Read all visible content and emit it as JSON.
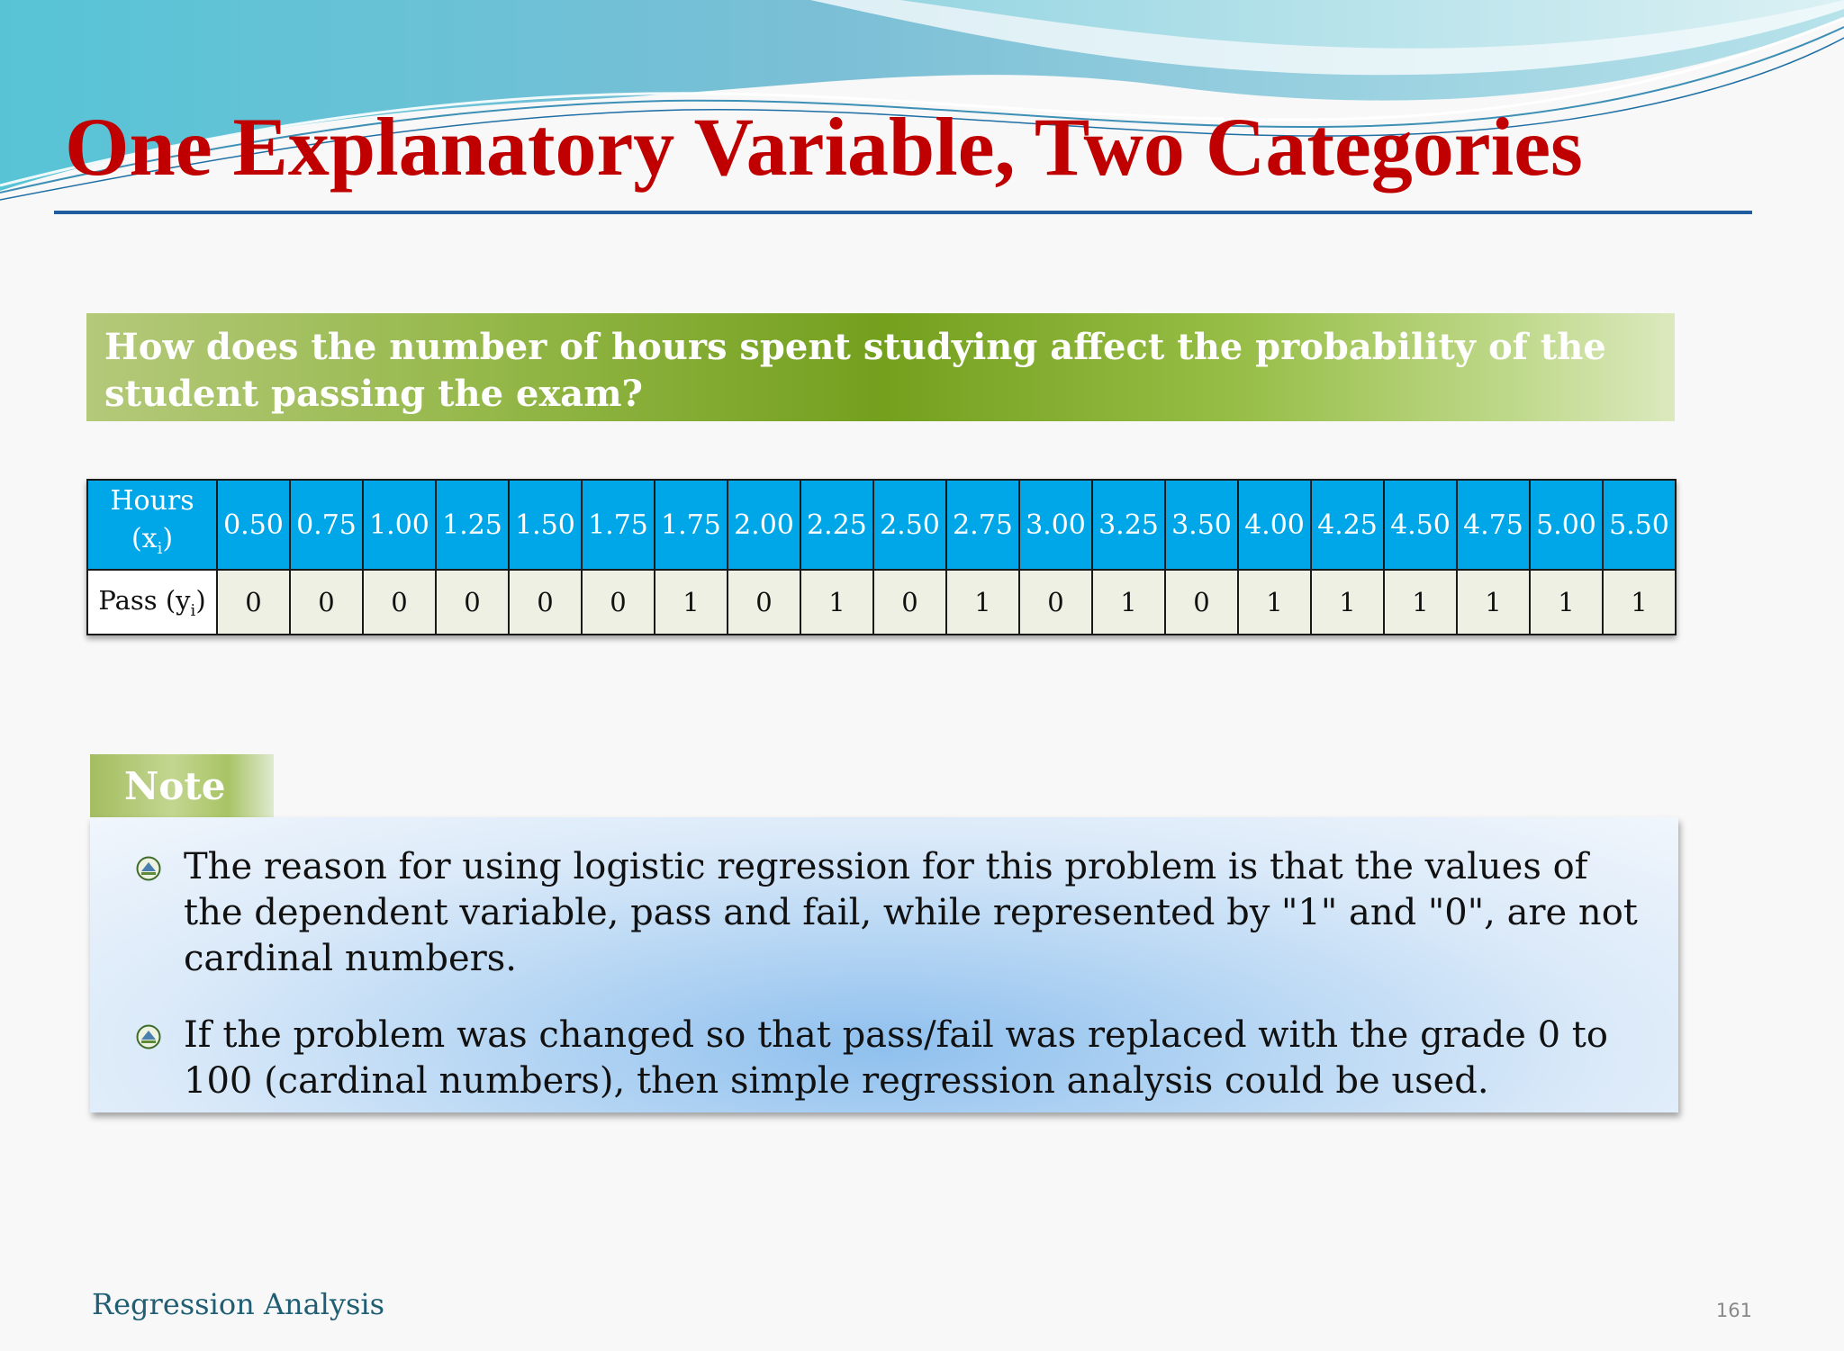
{
  "slide": {
    "title": "One Explanatory Variable, Two Categories",
    "question": "How does the number of hours spent studying affect the probability of the student passing the exam?",
    "table": {
      "hours_label": "Hours",
      "hours_label_var": "(x",
      "hours_label_sub": "i",
      "hours_label_close": ")",
      "pass_label": "Pass (y",
      "pass_label_sub": "i",
      "pass_label_close": ")",
      "hours": [
        "0.50",
        "0.75",
        "1.00",
        "1.25",
        "1.50",
        "1.75",
        "1.75",
        "2.00",
        "2.25",
        "2.50",
        "2.75",
        "3.00",
        "3.25",
        "3.50",
        "4.00",
        "4.25",
        "4.50",
        "4.75",
        "5.00",
        "5.50"
      ],
      "pass": [
        "0",
        "0",
        "0",
        "0",
        "0",
        "0",
        "1",
        "0",
        "1",
        "0",
        "1",
        "0",
        "1",
        "0",
        "1",
        "1",
        "1",
        "1",
        "1",
        "1"
      ]
    },
    "note": {
      "tab_label": "Note",
      "items": [
        "The reason for using logistic regression for this problem is that the values of the dependent variable, pass and fail, while represented by \"1\" and \"0\", are not cardinal numbers.",
        "If the problem was changed so that pass/fail was replaced with the grade 0 to 100 (cardinal numbers), then simple regression analysis could be used."
      ]
    },
    "footer": {
      "left": "Regression Analysis",
      "page": "161"
    },
    "colors": {
      "title": "#c00000",
      "table_header": "#00a7e8",
      "question_banner": "#74a01e",
      "note_box": "#8fc0ee"
    },
    "icons": [
      "bullet-icon"
    ]
  }
}
